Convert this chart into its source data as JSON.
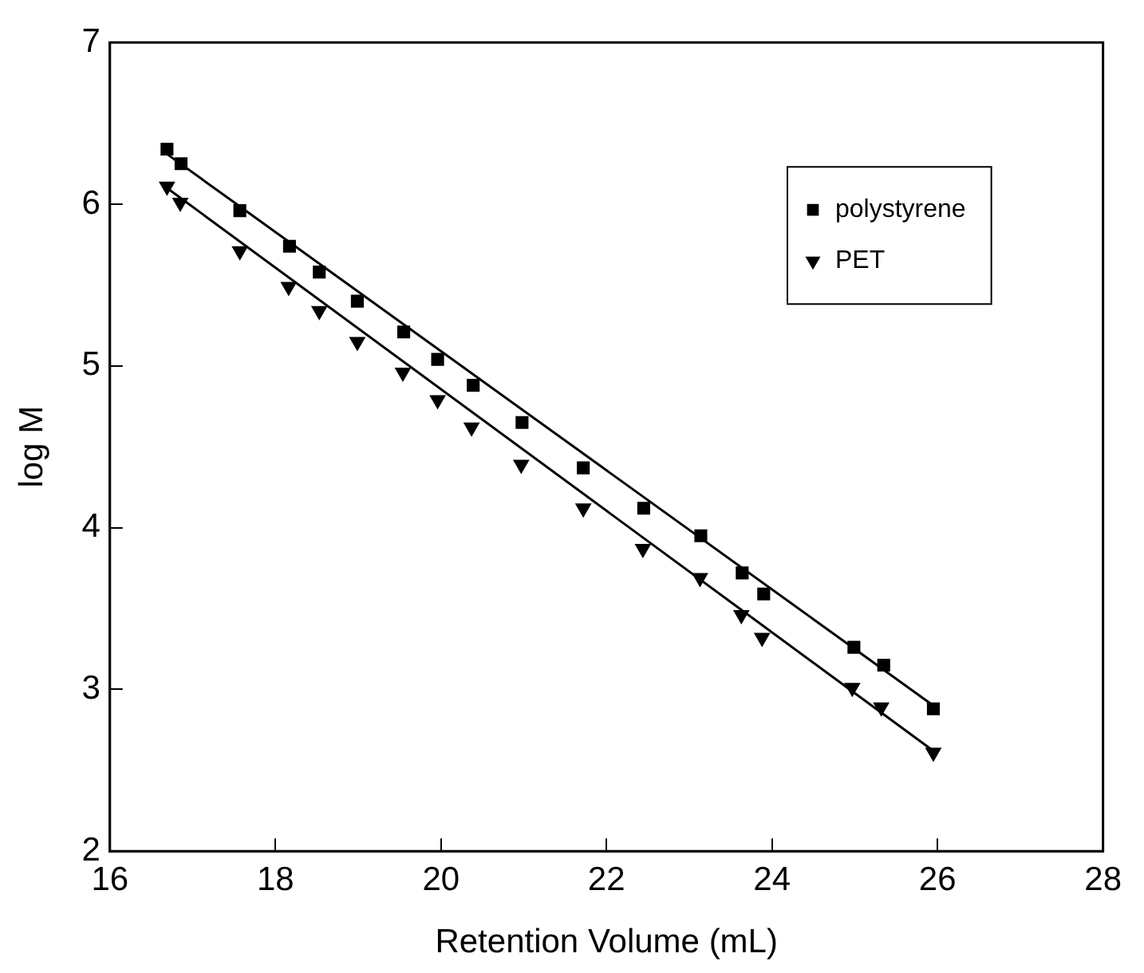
{
  "chart_data": {
    "type": "scatter",
    "xlabel": "Retention Volume (mL)",
    "ylabel": "log M",
    "xlim": [
      16,
      28
    ],
    "xticks": [
      16,
      18,
      20,
      22,
      24,
      26,
      28
    ],
    "ylim": [
      2,
      7
    ],
    "yticks": [
      2,
      3,
      4,
      5,
      6,
      7
    ],
    "grid": false,
    "legend": "top right",
    "series": [
      {
        "name": "polystyrene",
        "color": "#000000",
        "marker": "square",
        "x": [
          16.69,
          16.86,
          17.57,
          18.17,
          18.53,
          18.99,
          19.55,
          19.96,
          20.39,
          20.98,
          21.72,
          22.45,
          23.14,
          23.64,
          23.9,
          24.99,
          25.35,
          25.95
        ],
        "values": [
          6.34,
          6.25,
          5.96,
          5.74,
          5.58,
          5.4,
          5.21,
          5.04,
          4.88,
          4.65,
          4.37,
          4.12,
          3.95,
          3.72,
          3.59,
          3.26,
          3.15,
          2.88
        ]
      },
      {
        "name": "PET",
        "color": "#000000",
        "marker": "triangle",
        "x": [
          16.69,
          16.85,
          17.57,
          18.16,
          18.53,
          18.99,
          19.54,
          19.96,
          20.37,
          20.97,
          21.72,
          22.44,
          23.13,
          23.63,
          23.88,
          24.97,
          25.32,
          25.95
        ],
        "values": [
          6.11,
          6.01,
          5.71,
          5.49,
          5.34,
          5.15,
          4.96,
          4.79,
          4.62,
          4.39,
          4.12,
          3.87,
          3.69,
          3.46,
          3.32,
          3.01,
          2.89,
          2.61
        ]
      },
      {
        "type": "line",
        "color": "#000000",
        "marker": "none",
        "x": [
          16.69,
          25.95
        ],
        "values": [
          6.31,
          2.9
        ]
      },
      {
        "type": "line",
        "color": "#000000",
        "marker": "none",
        "x": [
          16.69,
          25.95
        ],
        "values": [
          6.1,
          2.62
        ]
      }
    ]
  }
}
